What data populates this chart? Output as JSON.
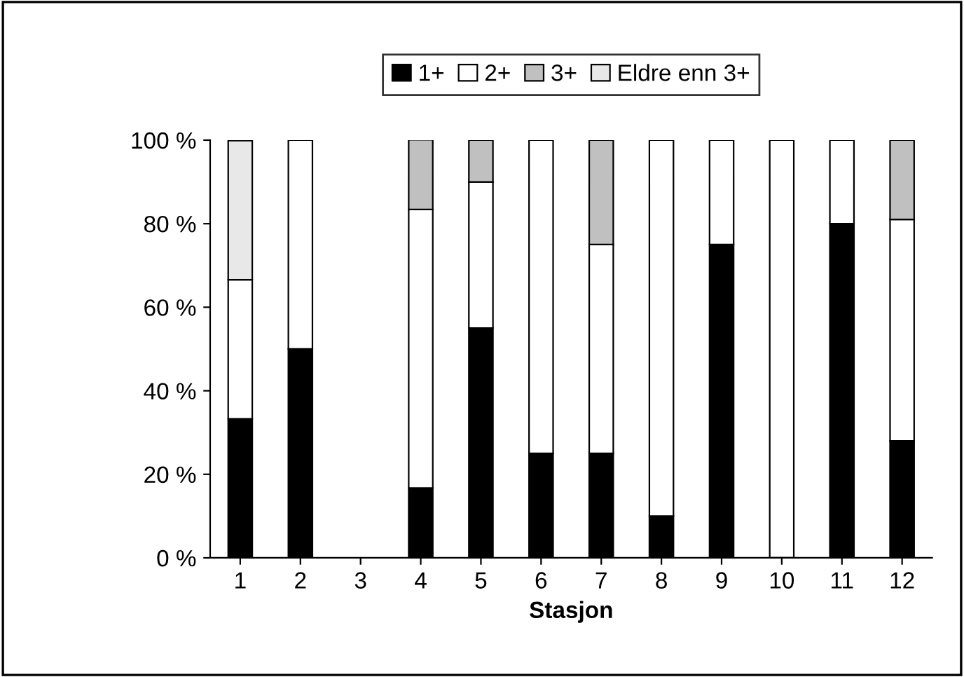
{
  "chart_data": {
    "type": "bar",
    "stacked": true,
    "xlabel": "Stasjon",
    "categories": [
      "1",
      "2",
      "3",
      "4",
      "5",
      "6",
      "7",
      "8",
      "9",
      "10",
      "11",
      "12"
    ],
    "series": [
      {
        "name": "1+",
        "color": "#000000",
        "values": [
          33.3,
          50,
          null,
          16.7,
          55,
          25,
          25,
          10,
          75,
          0,
          80,
          28
        ]
      },
      {
        "name": "2+",
        "color": "#ffffff",
        "values": [
          33.3,
          50,
          null,
          66.7,
          35,
          75,
          50,
          90,
          25,
          100,
          20,
          53
        ]
      },
      {
        "name": "3+",
        "color": "#c0c0c0",
        "values": [
          0,
          0,
          null,
          16.7,
          10,
          0,
          25,
          0,
          0,
          0,
          0,
          19
        ]
      },
      {
        "name": "Eldre enn 3+",
        "color": "#e8e8e8",
        "values": [
          33.3,
          0,
          null,
          0,
          0,
          0,
          0,
          0,
          0,
          0,
          0,
          0
        ]
      }
    ],
    "ylim": [
      0,
      100
    ],
    "yticks": [
      {
        "value": 0,
        "label": "0 %"
      },
      {
        "value": 20,
        "label": "20 %"
      },
      {
        "value": 40,
        "label": "40 %"
      },
      {
        "value": 60,
        "label": "60 %"
      },
      {
        "value": 80,
        "label": "80 %"
      },
      {
        "value": 100,
        "label": "100 %"
      }
    ],
    "grid": false,
    "legend": "top"
  }
}
